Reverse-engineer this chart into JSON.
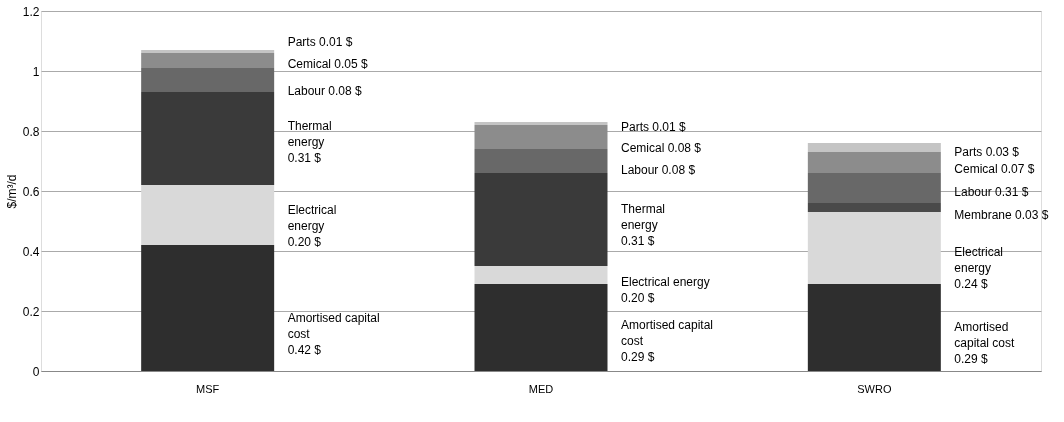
{
  "chart_data": {
    "type": "bar",
    "stacked": true,
    "ylabel": "$/m³/d",
    "categories": [
      "MSF",
      "MED",
      "SWRO"
    ],
    "series": [
      {
        "color": "#2e2e2e",
        "values": [
          0.42,
          0.29,
          0.29
        ]
      },
      {
        "color": "#d9d9d9",
        "values": [
          0.2,
          0.06,
          0.24
        ]
      },
      {
        "color": "#3a3a3a",
        "values": [
          0.31,
          0.31,
          null
        ]
      },
      {
        "color": "#4a4a4a",
        "values": [
          null,
          null,
          0.03
        ]
      },
      {
        "color": "#686868",
        "values": [
          0.08,
          0.08,
          0.1
        ]
      },
      {
        "color": "#8c8c8c",
        "values": [
          0.05,
          0.08,
          0.07
        ]
      },
      {
        "color": "#c4c4c4",
        "values": [
          0.01,
          0.01,
          0.03
        ]
      }
    ],
    "ylim": [
      0,
      1.2
    ],
    "yticks": [
      0,
      0.2,
      0.4,
      0.6,
      0.8,
      1,
      1.2
    ],
    "grid": "y",
    "annotations": [
      "Parts 0.01 $",
      "Cemical 0.05 $",
      "Labour 0.08 $",
      "Thermal\nenergy\n0.31 $",
      "Electrical\nenergy\n0.20 $",
      "Amortised capital\ncost\n0.42 $",
      "Parts 0.01 $",
      "Cemical 0.08 $",
      "Labour 0.08 $",
      "Thermal\nenergy\n0.31 $",
      "Electrical energy\n0.20 $",
      "Amortised capital\ncost\n0.29 $",
      "Parts 0.03 $",
      "Cemical 0.07 $",
      "Labour 0.31 $",
      "Membrane 0.03 $",
      "Electrical\nenergy\n0.24 $",
      "Amortised\ncapital cost\n0.29 $"
    ]
  }
}
